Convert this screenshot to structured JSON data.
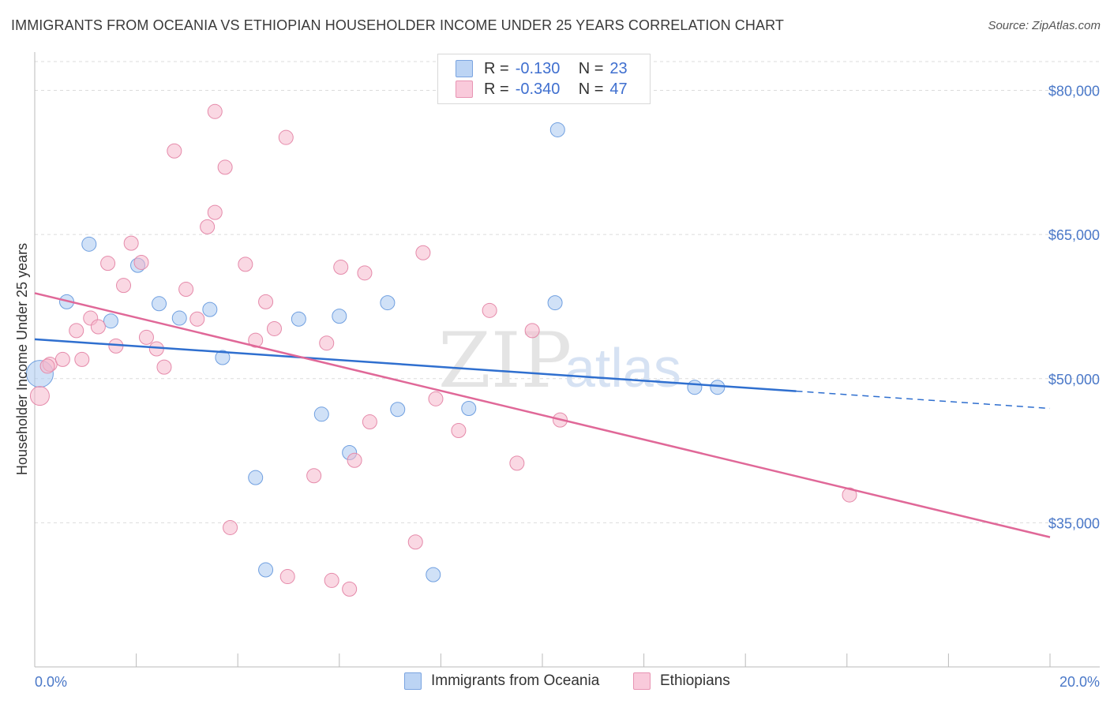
{
  "header": {
    "title": "IMMIGRANTS FROM OCEANIA VS ETHIOPIAN HOUSEHOLDER INCOME UNDER 25 YEARS CORRELATION CHART",
    "source": "Source: ZipAtlas.com"
  },
  "legend_top": {
    "rows": [
      {
        "r_label": "R =",
        "r_value": "-0.130",
        "n_label": "N =",
        "n_value": "23",
        "color": "#a9c8f0"
      },
      {
        "r_label": "R =",
        "r_value": "-0.340",
        "n_label": "N =",
        "n_value": "47",
        "color": "#f5b8cc"
      }
    ]
  },
  "legend_bottom": {
    "items": [
      {
        "label": "Immigrants from Oceania",
        "color": "#a9c8f0"
      },
      {
        "label": "Ethiopians",
        "color": "#f5b8cc"
      }
    ]
  },
  "watermark": {
    "zip": "ZIP",
    "atlas": "atlas"
  },
  "chart_data": {
    "type": "scatter",
    "title": "IMMIGRANTS FROM OCEANIA VS ETHIOPIAN HOUSEHOLDER INCOME UNDER 25 YEARS CORRELATION CHART",
    "xlabel": "",
    "ylabel": "Householder Income Under 25 years",
    "xlim": [
      0,
      20
    ],
    "ylim": [
      20000,
      83000
    ],
    "x_tick_labels": [
      "0.0%",
      "20.0%"
    ],
    "y_ticks": [
      35000,
      50000,
      65000,
      80000
    ],
    "y_tick_labels": [
      "$35,000",
      "$50,000",
      "$65,000",
      "$80,000"
    ],
    "grid": true,
    "series": [
      {
        "name": "Immigrants from Oceania",
        "color": "#a9c8f0",
        "stroke": "#6f9fe0",
        "points": [
          [
            0.1,
            50500
          ],
          [
            1.07,
            64000
          ],
          [
            0.63,
            58000
          ],
          [
            1.5,
            56000
          ],
          [
            2.03,
            61800
          ],
          [
            2.45,
            57800
          ],
          [
            2.85,
            56300
          ],
          [
            3.45,
            57200
          ],
          [
            3.7,
            52200
          ],
          [
            5.2,
            56200
          ],
          [
            6.0,
            56500
          ],
          [
            6.95,
            57900
          ],
          [
            10.25,
            57900
          ],
          [
            5.65,
            46300
          ],
          [
            7.15,
            46800
          ],
          [
            8.55,
            46900
          ],
          [
            6.2,
            42300
          ],
          [
            4.35,
            39700
          ],
          [
            4.55,
            30100
          ],
          [
            7.85,
            29600
          ],
          [
            13.0,
            49100
          ],
          [
            13.45,
            49100
          ],
          [
            10.3,
            75900
          ]
        ]
      },
      {
        "name": "Ethiopians",
        "color": "#f5b8cc",
        "stroke": "#e58aaa",
        "points": [
          [
            0.1,
            48200
          ],
          [
            0.3,
            51500
          ],
          [
            0.55,
            52000
          ],
          [
            0.82,
            55000
          ],
          [
            0.93,
            52000
          ],
          [
            1.1,
            56300
          ],
          [
            1.25,
            55400
          ],
          [
            1.44,
            62000
          ],
          [
            1.6,
            53400
          ],
          [
            1.75,
            59700
          ],
          [
            1.9,
            64100
          ],
          [
            2.1,
            62100
          ],
          [
            2.2,
            54300
          ],
          [
            2.4,
            53100
          ],
          [
            2.55,
            51200
          ],
          [
            2.98,
            59300
          ],
          [
            3.2,
            56200
          ],
          [
            3.4,
            65800
          ],
          [
            3.55,
            67300
          ],
          [
            3.75,
            72000
          ],
          [
            2.75,
            73700
          ],
          [
            3.55,
            77800
          ],
          [
            3.85,
            34500
          ],
          [
            4.15,
            61900
          ],
          [
            4.35,
            54000
          ],
          [
            4.55,
            58000
          ],
          [
            4.72,
            55200
          ],
          [
            4.98,
            29400
          ],
          [
            4.95,
            75100
          ],
          [
            5.5,
            39900
          ],
          [
            5.75,
            53700
          ],
          [
            5.85,
            29000
          ],
          [
            6.03,
            61600
          ],
          [
            6.2,
            28100
          ],
          [
            6.3,
            41500
          ],
          [
            6.5,
            61000
          ],
          [
            6.6,
            45500
          ],
          [
            7.5,
            33000
          ],
          [
            7.65,
            63100
          ],
          [
            7.9,
            47900
          ],
          [
            8.35,
            44600
          ],
          [
            8.96,
            57100
          ],
          [
            9.5,
            41200
          ],
          [
            9.8,
            55000
          ],
          [
            10.35,
            45700
          ],
          [
            16.05,
            37900
          ],
          [
            0.25,
            51300
          ]
        ]
      }
    ],
    "trendlines": [
      {
        "series": "Immigrants from Oceania",
        "x": [
          0,
          15.0
        ],
        "y": [
          54100,
          48700
        ],
        "dashed_extension_to": [
          20,
          46900
        ],
        "color": "#2f6fcf"
      },
      {
        "series": "Ethiopians",
        "x": [
          0,
          20
        ],
        "y": [
          58900,
          33500
        ],
        "color": "#e06898"
      }
    ]
  }
}
